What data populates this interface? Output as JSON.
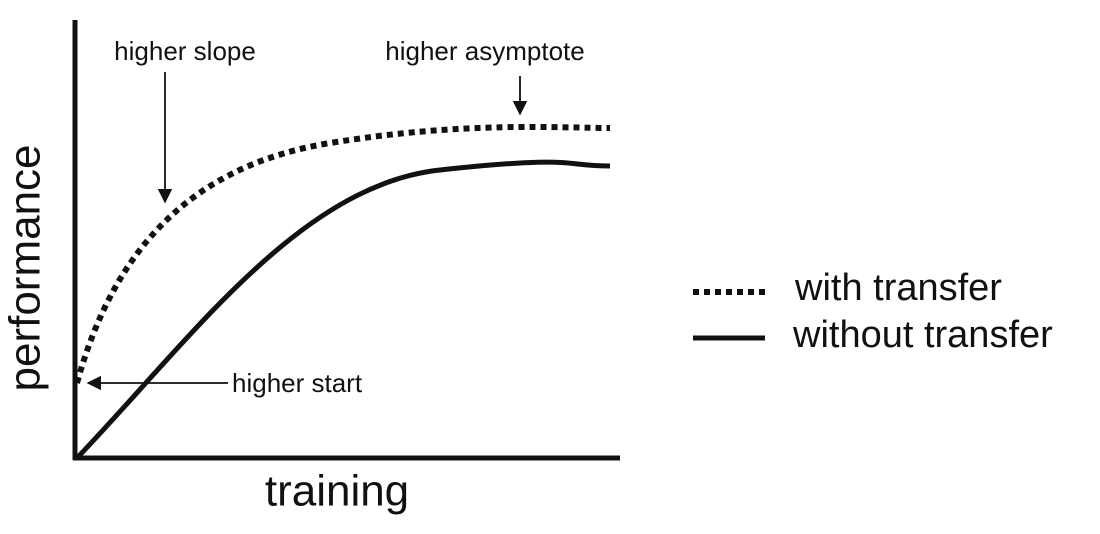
{
  "axes": {
    "x_label": "training",
    "y_label": "performance"
  },
  "annotations": {
    "slope": "higher slope",
    "asymptote": "higher asymptote",
    "start": "higher start"
  },
  "legend": [
    "with transfer",
    "without transfer"
  ]
}
